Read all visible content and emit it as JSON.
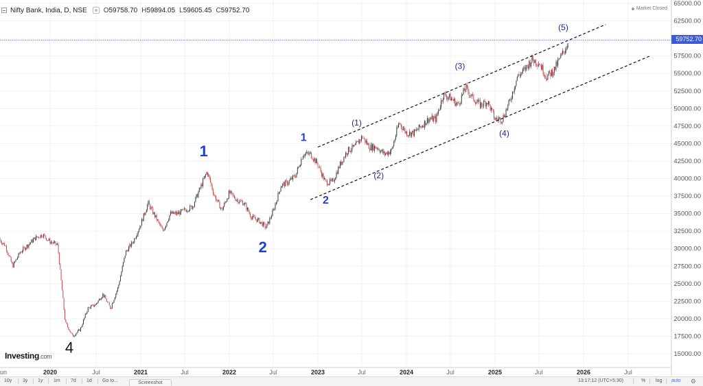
{
  "header": {
    "symbol": "Nifty Bank, India, D, NSE",
    "open_label": "O",
    "open": "59758.70",
    "high_label": "H",
    "high": "59894.05",
    "low_label": "L",
    "low": "59605.45",
    "close_label": "C",
    "close": "59752.70"
  },
  "market_status": "Market Closed",
  "logo": {
    "brand": "Investing",
    "suffix": ".com"
  },
  "current_price": "59752.70",
  "colors": {
    "up": "#3a3a3a",
    "down": "#c94a4a",
    "channel": "#111111",
    "price_line": "#3d5bd6",
    "wave_major": "#1f3fd1",
    "wave_minor": "#1a2a8c",
    "grid": "#f2f2f2"
  },
  "toolbar": {
    "ranges": [
      "10y",
      "3y",
      "1y",
      "1m",
      "7d",
      "1d",
      "Go to..."
    ],
    "time": "13:17:12 (UTC+5:30)",
    "pct": "%",
    "log": "log",
    "auto": "auto",
    "screenshot": "Screenshot"
  },
  "chart_data": {
    "type": "line",
    "symbol": "Nifty Bank",
    "x_ticks": [
      "un",
      "2020",
      "Jul",
      "2021",
      "Jul",
      "2022",
      "Jul",
      "2023",
      "Jul",
      "2024",
      "Jul",
      "2025",
      "Jul",
      "2026",
      "Jul"
    ],
    "y_ticks": [
      "65000.00",
      "62500.00",
      "60000.00",
      "57500.00",
      "55000.00",
      "52500.00",
      "50000.00",
      "47500.00",
      "45000.00",
      "42500.00",
      "40000.00",
      "37500.00",
      "35000.00",
      "32500.00",
      "30000.00",
      "27500.00",
      "25000.00",
      "22500.00",
      "20000.00",
      "17500.00",
      "15000.00"
    ],
    "ylim": [
      14000,
      65500
    ],
    "series": [
      {
        "x": [
          "2019-06",
          "2019-07",
          "2019-08",
          "2019-09",
          "2019-10",
          "2019-11",
          "2019-12",
          "2020-01",
          "2020-02",
          "2020-03",
          "2020-04",
          "2020-05",
          "2020-06",
          "2020-07",
          "2020-08",
          "2020-09",
          "2020-10",
          "2020-11",
          "2020-12",
          "2021-01",
          "2021-02",
          "2021-03",
          "2021-04",
          "2021-05",
          "2021-06",
          "2021-07",
          "2021-08",
          "2021-09",
          "2021-10",
          "2021-11",
          "2021-12",
          "2022-01",
          "2022-02",
          "2022-03",
          "2022-04",
          "2022-05",
          "2022-06",
          "2022-07",
          "2022-08",
          "2022-09",
          "2022-10",
          "2022-11",
          "2022-12",
          "2023-01",
          "2023-02",
          "2023-03",
          "2023-04",
          "2023-05",
          "2023-06",
          "2023-07",
          "2023-08",
          "2023-09",
          "2023-10",
          "2023-11",
          "2023-12",
          "2024-01",
          "2024-02",
          "2024-03",
          "2024-04",
          "2024-05",
          "2024-06",
          "2024-07",
          "2024-08",
          "2024-09",
          "2024-10",
          "2024-11",
          "2024-12",
          "2025-01",
          "2025-02",
          "2025-03",
          "2025-04",
          "2025-05",
          "2025-06",
          "2025-07",
          "2025-08",
          "2025-09",
          "2025-10",
          "2025-11"
        ],
        "y": [
          31500,
          30500,
          27500,
          29500,
          30500,
          31500,
          32000,
          31000,
          30500,
          19500,
          17500,
          18500,
          21500,
          22000,
          23500,
          21500,
          24500,
          29500,
          31000,
          33500,
          36500,
          34500,
          32500,
          35000,
          35000,
          35500,
          36000,
          38500,
          41000,
          37500,
          35500,
          38000,
          37000,
          36500,
          34500,
          34000,
          33000,
          35500,
          39000,
          39500,
          40500,
          43500,
          43500,
          42000,
          39500,
          39500,
          42000,
          44000,
          44500,
          46000,
          44500,
          44500,
          43500,
          44000,
          48000,
          46500,
          46500,
          47500,
          48500,
          48500,
          52000,
          51500,
          50500,
          53000,
          51500,
          50500,
          51000,
          48500,
          48500,
          51000,
          54500,
          55500,
          57000,
          56500,
          54500,
          55500,
          57500,
          59500
        ]
      }
    ],
    "annotations": {
      "major_waves": [
        {
          "label": "1",
          "date": "2021-10",
          "price": 41800
        },
        {
          "label": "2",
          "date": "2022-06",
          "price": 32200
        },
        {
          "label": "1",
          "date": "2022-12",
          "price": 44200
        },
        {
          "label": "2",
          "date": "2023-03",
          "price": 38600
        }
      ],
      "minor_waves": [
        {
          "label": "(1)",
          "date": "2023-07",
          "price": 46400
        },
        {
          "label": "(2)",
          "date": "2023-10",
          "price": 42000
        },
        {
          "label": "(3)",
          "date": "2024-09",
          "price": 54500
        },
        {
          "label": "(4)",
          "date": "2025-03",
          "price": 48000
        },
        {
          "label": "(5)",
          "date": "2025-11",
          "price": 60000
        }
      ],
      "low_label": {
        "label": "4",
        "date": "2020-03",
        "price": 16900
      },
      "channel_upper": {
        "from_date": "2023-01",
        "from_price": 44500,
        "to_date": "2026-04",
        "to_price": 62000
      },
      "channel_lower": {
        "from_date": "2022-12",
        "from_price": 37000,
        "to_date": "2026-10",
        "to_price": 57500
      }
    }
  }
}
